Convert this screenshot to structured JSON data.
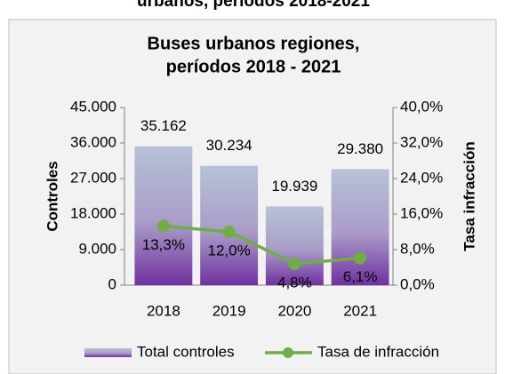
{
  "caption": "urbanos, períodos 2018-2021",
  "chart_data": {
    "type": "bar-line",
    "title": [
      "Buses urbanos regiones,",
      "períodos 2018 - 2021"
    ],
    "categories": [
      "2018",
      "2019",
      "2020",
      "2021"
    ],
    "series": [
      {
        "name": "Total controles",
        "type": "bar",
        "color": "#7030a0",
        "values": [
          35162,
          30234,
          19939,
          29380
        ],
        "value_labels": [
          "35.162",
          "30.234",
          "19.939",
          "29.380"
        ]
      },
      {
        "name": "Tasa de infracción",
        "type": "line",
        "axis": "y2",
        "color": "#70ad47",
        "values": [
          13.3,
          12.0,
          4.8,
          6.1
        ],
        "value_labels": [
          "13,3%",
          "12,0%",
          "4,8%",
          "6,1%"
        ]
      }
    ],
    "ylabel": "Controles",
    "y2label": "Tasa infracción",
    "ylim": [
      0,
      45000
    ],
    "yticks": [
      0,
      {
        "value": 9000,
        "label": "9.000"
      },
      {
        "value": 18000,
        "label": "18.000"
      },
      {
        "value": 27000,
        "label": "27.000"
      },
      {
        "value": 36000,
        "label": "36.000"
      },
      {
        "value": 45000,
        "label": "45.000"
      }
    ],
    "y2lim": [
      0,
      40
    ],
    "y2ticks": [
      {
        "value": 0,
        "label": "0,0%"
      },
      {
        "value": 8,
        "label": "8,0%"
      },
      {
        "value": 16,
        "label": "16,0%"
      },
      {
        "value": 24,
        "label": "24,0%"
      },
      {
        "value": 32,
        "label": "32,0%"
      },
      {
        "value": 40,
        "label": "40,0%"
      }
    ],
    "legend": "bottom"
  }
}
